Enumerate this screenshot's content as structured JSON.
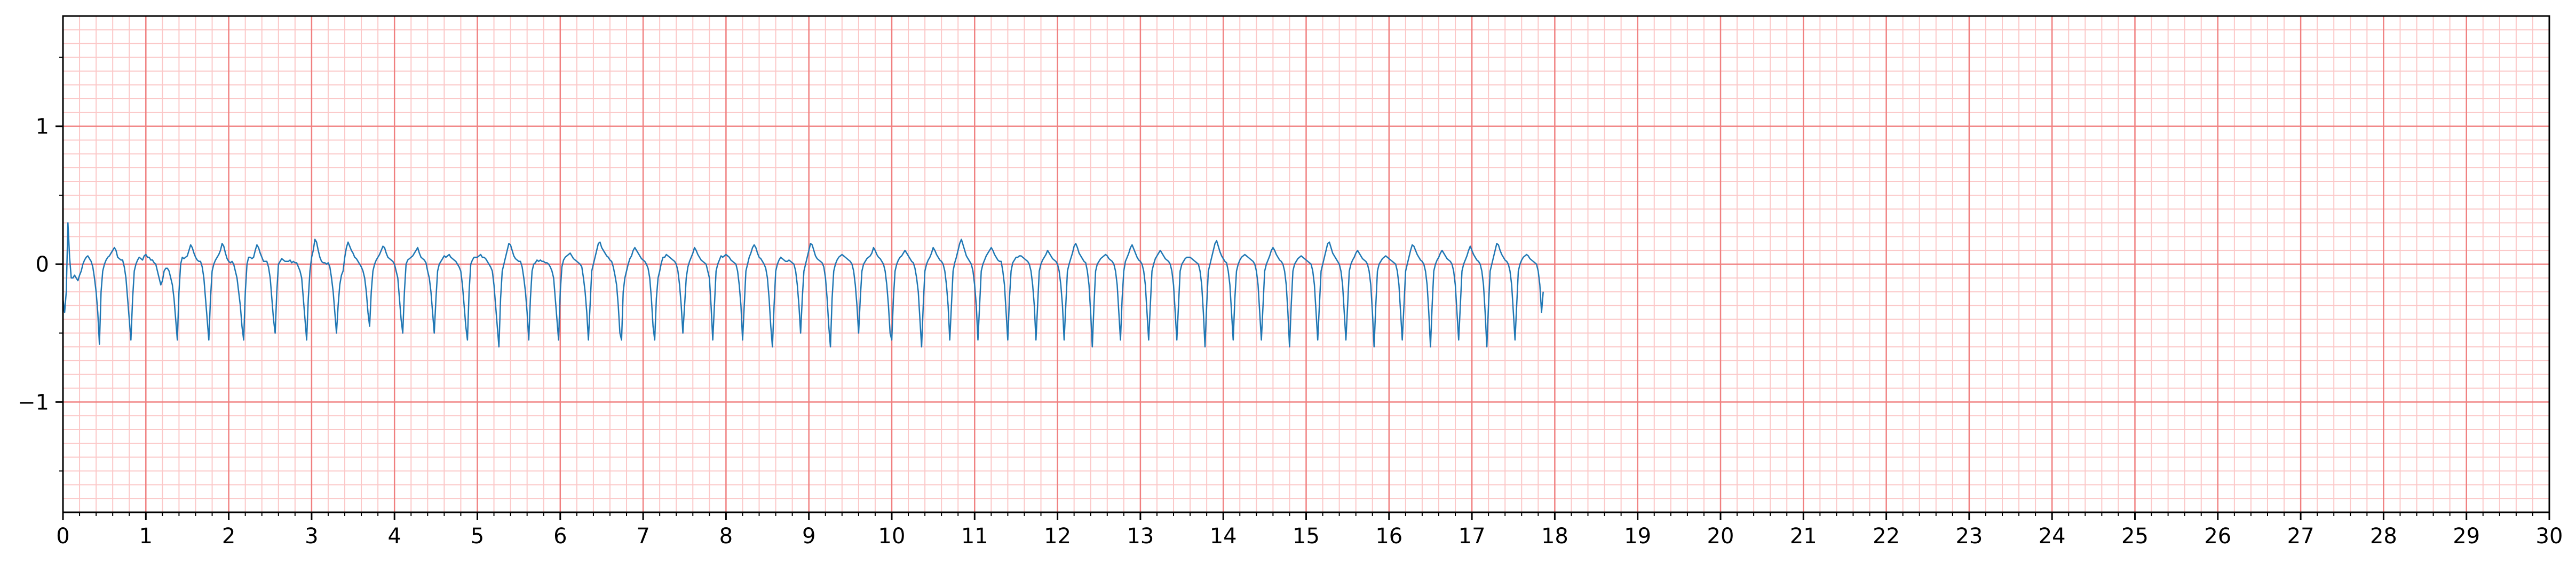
{
  "chart_data": {
    "type": "line",
    "title": "",
    "xlabel": "",
    "ylabel": "",
    "xlim": [
      0,
      30
    ],
    "ylim": [
      -1.8,
      1.8
    ],
    "x_ticks": [
      0,
      1,
      2,
      3,
      4,
      5,
      6,
      7,
      8,
      9,
      10,
      11,
      12,
      13,
      14,
      15,
      16,
      17,
      18,
      19,
      20,
      21,
      22,
      23,
      24,
      25,
      26,
      27,
      28,
      29,
      30
    ],
    "x_tick_labels": [
      "0",
      "1",
      "2",
      "3",
      "4",
      "5",
      "6",
      "7",
      "8",
      "9",
      "10",
      "11",
      "12",
      "13",
      "14",
      "15",
      "16",
      "17",
      "18",
      "19",
      "20",
      "21",
      "22",
      "23",
      "24",
      "25",
      "26",
      "27",
      "28",
      "29",
      "30"
    ],
    "y_ticks": [
      -1,
      0,
      1
    ],
    "y_tick_labels": [
      "−1",
      "0",
      "1"
    ],
    "grid": true,
    "grid_major_x_step": 1,
    "grid_minor_x_step": 0.2,
    "grid_major_y_step": 1,
    "grid_minor_y_step": 0.1,
    "colors": {
      "trace": "#1f77b4",
      "grid_major": "#f08080",
      "grid_minor": "#fbc8c8",
      "axes": "#000000"
    },
    "series": [
      {
        "sample_interval": 0.02,
        "values": [
          -0.25,
          -0.35,
          -0.2,
          0.3,
          0.05,
          -0.1,
          -0.1,
          -0.08,
          -0.1,
          -0.12,
          -0.08,
          -0.05,
          0,
          0.03,
          0.05,
          0.06,
          0.04,
          0.02,
          -0.02,
          -0.1,
          -0.2,
          -0.35,
          -0.58,
          -0.2,
          -0.05,
          0,
          0.03,
          0.05,
          0.06,
          0.08,
          0.1,
          0.12,
          0.1,
          0.05,
          0.04,
          0.03,
          0.03,
          -0.02,
          -0.1,
          -0.25,
          -0.4,
          -0.55,
          -0.25,
          -0.05,
          0,
          0.03,
          0.05,
          0.04,
          0.03,
          0.06,
          0.07,
          0.05,
          0.05,
          0.03,
          0.03,
          0.01,
          0,
          -0.05,
          -0.1,
          -0.15,
          -0.12,
          -0.05,
          -0.03,
          -0.03,
          -0.05,
          -0.1,
          -0.15,
          -0.25,
          -0.4,
          -0.55,
          -0.2,
          0,
          0.05,
          0.04,
          0.05,
          0.06,
          0.1,
          0.14,
          0.12,
          0.08,
          0.05,
          0.03,
          0.02,
          0.02,
          -0.02,
          -0.1,
          -0.25,
          -0.4,
          -0.55,
          -0.25,
          -0.05,
          0,
          0.03,
          0.05,
          0.07,
          0.1,
          0.15,
          0.13,
          0.08,
          0.04,
          0.02,
          0.01,
          0.02,
          0,
          -0.05,
          -0.1,
          -0.2,
          -0.3,
          -0.45,
          -0.55,
          -0.2,
          0,
          0.05,
          0.05,
          0.04,
          0.05,
          0.1,
          0.14,
          0.12,
          0.08,
          0.05,
          0.02,
          0.02,
          0.02,
          -0.02,
          -0.1,
          -0.25,
          -0.4,
          -0.5,
          -0.2,
          0,
          0.02,
          0.04,
          0.03,
          0.02,
          0.02,
          0.02,
          0.03,
          0.01,
          0.02,
          0.01,
          0.01,
          -0.02,
          -0.05,
          -0.1,
          -0.25,
          -0.4,
          -0.55,
          -0.25,
          -0.05,
          0.05,
          0.1,
          0.18,
          0.16,
          0.1,
          0.05,
          0.02,
          0.01,
          0.01,
          0,
          0.01,
          -0.02,
          -0.1,
          -0.2,
          -0.35,
          -0.5,
          -0.3,
          -0.15,
          -0.08,
          -0.05,
          0.05,
          0.12,
          0.16,
          0.13,
          0.1,
          0.08,
          0.05,
          0.04,
          0.02,
          0,
          -0.02,
          -0.05,
          -0.1,
          -0.2,
          -0.35,
          -0.45,
          -0.2,
          -0.05,
          0,
          0.03,
          0.05,
          0.07,
          0.1,
          0.13,
          0.12,
          0.08,
          0.05,
          0.04,
          0.03,
          0.02,
          0,
          -0.05,
          -0.1,
          -0.25,
          -0.4,
          -0.5,
          -0.2,
          0,
          0.03,
          0.04,
          0.05,
          0.06,
          0.08,
          0.1,
          0.12,
          0.08,
          0.05,
          0.04,
          0.03,
          0.01,
          -0.05,
          -0.1,
          -0.2,
          -0.35,
          -0.5,
          -0.25,
          -0.05,
          0,
          0.02,
          0.04,
          0.06,
          0.05,
          0.06,
          0.07,
          0.05,
          0.04,
          0.03,
          0.02,
          0,
          -0.02,
          -0.05,
          -0.15,
          -0.3,
          -0.45,
          -0.55,
          -0.2,
          0,
          0.03,
          0.05,
          0.05,
          0.05,
          0.06,
          0.07,
          0.05,
          0.05,
          0.04,
          0.02,
          0,
          -0.02,
          -0.05,
          -0.15,
          -0.3,
          -0.45,
          -0.6,
          -0.25,
          -0.05,
          0,
          0.05,
          0.1,
          0.15,
          0.14,
          0.1,
          0.06,
          0.04,
          0.03,
          0.02,
          0.02,
          -0.02,
          -0.1,
          -0.2,
          -0.35,
          -0.55,
          -0.25,
          -0.05,
          0,
          0.01,
          0.03,
          0.02,
          0.03,
          0.02,
          0.02,
          0.01,
          0.01,
          0,
          -0.02,
          -0.05,
          -0.1,
          -0.25,
          -0.4,
          -0.55,
          -0.2,
          -0.02,
          0.03,
          0.05,
          0.06,
          0.07,
          0.08,
          0.06,
          0.04,
          0.03,
          0.02,
          0.01,
          0,
          -0.02,
          -0.1,
          -0.2,
          -0.35,
          -0.55,
          -0.3,
          -0.05,
          0,
          0.05,
          0.1,
          0.15,
          0.16,
          0.12,
          0.1,
          0.08,
          0.06,
          0.05,
          0.03,
          0.02,
          -0.02,
          -0.08,
          -0.15,
          -0.3,
          -0.5,
          -0.55,
          -0.2,
          -0.1,
          -0.05,
          0,
          0.04,
          0.06,
          0.1,
          0.12,
          0.1,
          0.08,
          0.06,
          0.04,
          0.03,
          0.02,
          0,
          -0.03,
          -0.1,
          -0.25,
          -0.45,
          -0.55,
          -0.25,
          -0.1,
          -0.05,
          0.01,
          0.05,
          0.05,
          0.07,
          0.06,
          0.05,
          0.04,
          0.03,
          0.02,
          0,
          -0.05,
          -0.15,
          -0.3,
          -0.5,
          -0.3,
          -0.1,
          -0.02,
          0.02,
          0.05,
          0.08,
          0.12,
          0.1,
          0.07,
          0.05,
          0.03,
          0.02,
          0.01,
          0,
          -0.05,
          -0.1,
          -0.3,
          -0.55,
          -0.3,
          -0.05,
          0,
          0.03,
          0.06,
          0.05,
          0.06,
          0.07,
          0.06,
          0.05,
          0.03,
          0.02,
          0.01,
          0,
          -0.05,
          -0.15,
          -0.3,
          -0.55,
          -0.3,
          -0.05,
          0,
          0.05,
          0.08,
          0.12,
          0.14,
          0.12,
          0.08,
          0.05,
          0.04,
          0.02,
          0,
          -0.03,
          -0.1,
          -0.25,
          -0.45,
          -0.6,
          -0.3,
          -0.05,
          0,
          0.03,
          0.05,
          0.04,
          0.03,
          0.02,
          0.02,
          0.03,
          0.02,
          0.01,
          0,
          -0.05,
          -0.15,
          -0.3,
          -0.5,
          -0.25,
          -0.05,
          0,
          0.05,
          0.1,
          0.15,
          0.14,
          0.1,
          0.06,
          0.04,
          0.03,
          0.02,
          0.01,
          -0.02,
          -0.1,
          -0.25,
          -0.45,
          -0.6,
          -0.25,
          -0.05,
          0,
          0.03,
          0.05,
          0.06,
          0.07,
          0.06,
          0.05,
          0.04,
          0.03,
          0.02,
          0,
          -0.05,
          -0.15,
          -0.3,
          -0.5,
          -0.25,
          -0.05,
          0,
          0.02,
          0.04,
          0.05,
          0.06,
          0.08,
          0.12,
          0.1,
          0.07,
          0.05,
          0.04,
          0.02,
          0,
          -0.05,
          -0.15,
          -0.3,
          -0.5,
          -0.55,
          -0.25,
          -0.05,
          0,
          0.03,
          0.05,
          0.06,
          0.08,
          0.1,
          0.08,
          0.06,
          0.04,
          0.02,
          0.01,
          -0.03,
          -0.1,
          -0.2,
          -0.4,
          -0.6,
          -0.3,
          -0.05,
          0,
          0.03,
          0.05,
          0.08,
          0.12,
          0.1,
          0.07,
          0.05,
          0.03,
          0.02,
          0,
          -0.05,
          -0.15,
          -0.3,
          -0.55,
          -0.3,
          -0.05,
          0.01,
          0.05,
          0.1,
          0.15,
          0.18,
          0.14,
          0.1,
          0.06,
          0.04,
          0.02,
          0,
          -0.05,
          -0.15,
          -0.3,
          -0.55,
          -0.3,
          -0.05,
          0,
          0.03,
          0.06,
          0.08,
          0.1,
          0.12,
          0.1,
          0.07,
          0.05,
          0.03,
          0.02,
          0.02,
          -0.05,
          -0.15,
          -0.35,
          -0.55,
          -0.25,
          -0.05,
          0.01,
          0.03,
          0.05,
          0.05,
          0.06,
          0.06,
          0.05,
          0.04,
          0.03,
          0.02,
          0,
          -0.05,
          -0.15,
          -0.3,
          -0.55,
          -0.3,
          -0.05,
          0,
          0.03,
          0.05,
          0.07,
          0.1,
          0.08,
          0.06,
          0.04,
          0.03,
          0.02,
          0,
          -0.05,
          -0.15,
          -0.3,
          -0.55,
          -0.3,
          -0.05,
          0,
          0.04,
          0.08,
          0.13,
          0.15,
          0.12,
          0.08,
          0.06,
          0.04,
          0.02,
          0.01,
          -0.05,
          -0.15,
          -0.35,
          -0.6,
          -0.3,
          -0.05,
          0,
          0.02,
          0.04,
          0.05,
          0.06,
          0.07,
          0.06,
          0.04,
          0.03,
          0.02,
          0,
          -0.05,
          -0.15,
          -0.35,
          -0.55,
          -0.25,
          -0.05,
          0.02,
          0.05,
          0.08,
          0.12,
          0.14,
          0.11,
          0.08,
          0.05,
          0.03,
          0.02,
          0,
          -0.05,
          -0.15,
          -0.35,
          -0.55,
          -0.3,
          -0.05,
          0,
          0.04,
          0.06,
          0.08,
          0.1,
          0.08,
          0.06,
          0.04,
          0.03,
          0.02,
          0,
          -0.05,
          -0.15,
          -0.35,
          -0.55,
          -0.3,
          -0.05,
          0,
          0.02,
          0.04,
          0.05,
          0.05,
          0.05,
          0.04,
          0.03,
          0.02,
          0.01,
          0,
          -0.05,
          -0.15,
          -0.35,
          -0.6,
          -0.3,
          -0.05,
          0,
          0.05,
          0.1,
          0.15,
          0.17,
          0.13,
          0.09,
          0.06,
          0.04,
          0.02,
          0.01,
          -0.05,
          -0.15,
          -0.35,
          -0.55,
          -0.25,
          -0.05,
          0,
          0.03,
          0.05,
          0.06,
          0.07,
          0.06,
          0.05,
          0.04,
          0.03,
          0.02,
          0,
          -0.05,
          -0.15,
          -0.35,
          -0.55,
          -0.3,
          -0.05,
          0,
          0.03,
          0.06,
          0.1,
          0.12,
          0.1,
          0.07,
          0.05,
          0.03,
          0.02,
          0,
          -0.05,
          -0.15,
          -0.35,
          -0.6,
          -0.3,
          -0.05,
          0,
          0.02,
          0.04,
          0.05,
          0.06,
          0.05,
          0.04,
          0.03,
          0.02,
          0.01,
          0,
          -0.05,
          -0.15,
          -0.35,
          -0.55,
          -0.3,
          -0.05,
          0,
          0.05,
          0.1,
          0.15,
          0.16,
          0.12,
          0.08,
          0.06,
          0.04,
          0.02,
          0,
          -0.05,
          -0.15,
          -0.35,
          -0.55,
          -0.3,
          -0.05,
          0,
          0.03,
          0.05,
          0.08,
          0.1,
          0.08,
          0.06,
          0.04,
          0.03,
          0.02,
          0,
          -0.05,
          -0.15,
          -0.35,
          -0.6,
          -0.3,
          -0.05,
          0,
          0.02,
          0.04,
          0.05,
          0.06,
          0.05,
          0.04,
          0.03,
          0.02,
          0.01,
          0,
          -0.05,
          -0.15,
          -0.35,
          -0.55,
          -0.3,
          -0.05,
          0,
          0.05,
          0.1,
          0.14,
          0.13,
          0.1,
          0.07,
          0.05,
          0.03,
          0.02,
          0,
          -0.05,
          -0.15,
          -0.35,
          -0.6,
          -0.3,
          -0.05,
          0,
          0.03,
          0.05,
          0.08,
          0.1,
          0.08,
          0.06,
          0.04,
          0.03,
          0.02,
          0,
          -0.05,
          -0.15,
          -0.35,
          -0.55,
          -0.3,
          -0.05,
          0,
          0.03,
          0.06,
          0.1,
          0.13,
          0.1,
          0.07,
          0.05,
          0.03,
          0.02,
          0,
          -0.05,
          -0.15,
          -0.35,
          -0.6,
          -0.3,
          -0.05,
          0,
          0.05,
          0.1,
          0.15,
          0.14,
          0.1,
          0.07,
          0.05,
          0.03,
          0.02,
          0,
          -0.05,
          -0.15,
          -0.35,
          -0.55,
          -0.3,
          -0.05,
          0,
          0.03,
          0.05,
          0.06,
          0.07,
          0.06,
          0.04,
          0.03,
          0.02,
          0.01,
          0,
          -0.05,
          -0.15,
          -0.35,
          -0.2
        ]
      }
    ]
  }
}
